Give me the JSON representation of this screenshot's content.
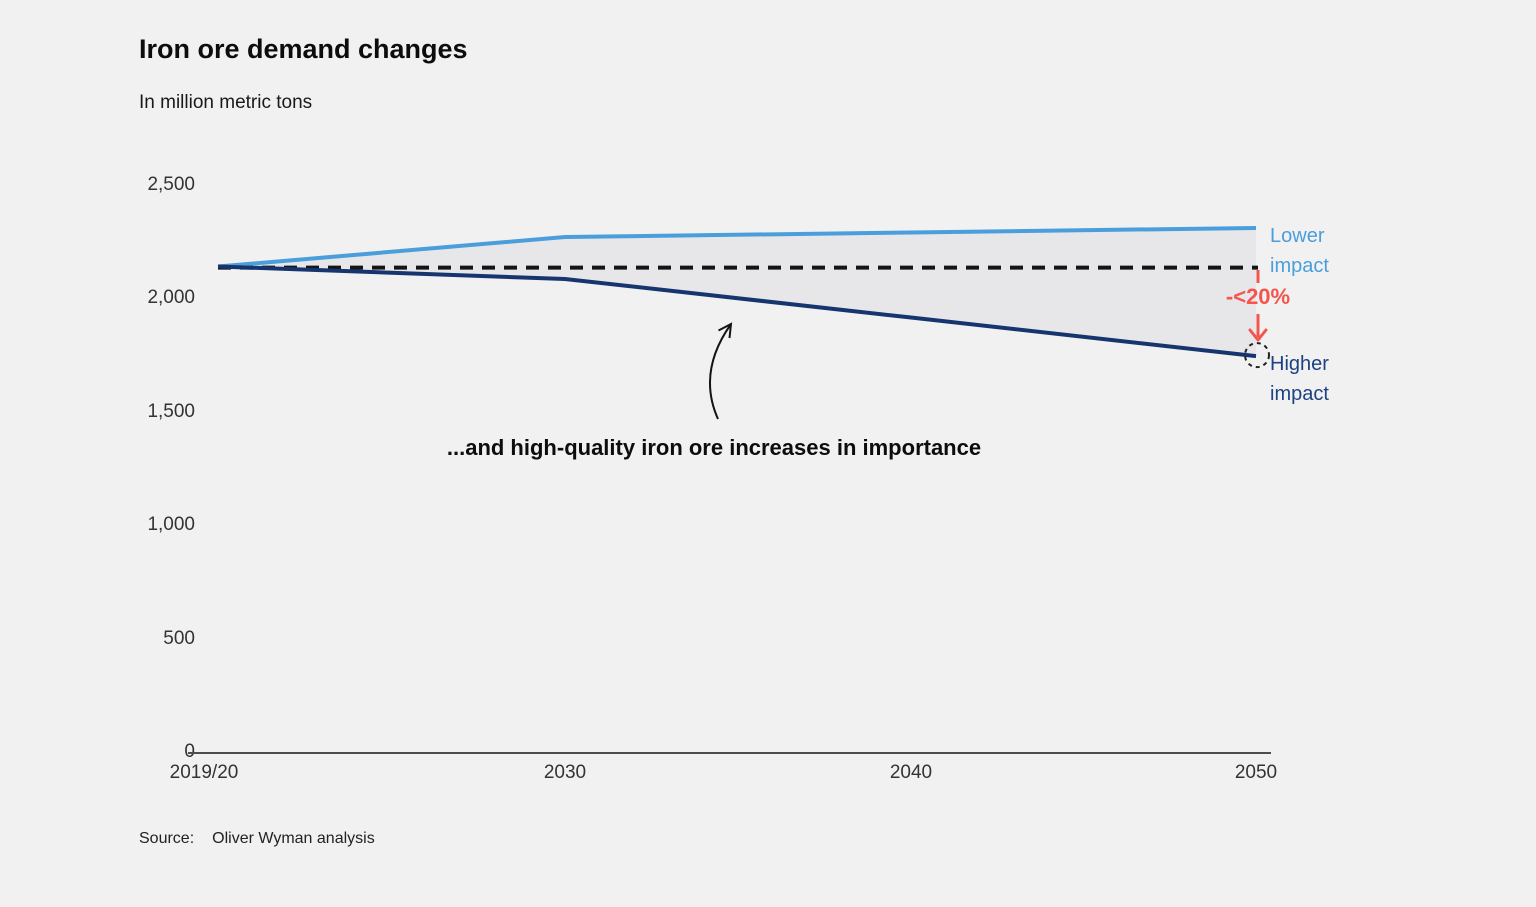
{
  "header": {
    "title": "Iron ore demand changes",
    "subtitle": "In million metric tons"
  },
  "chart_data": {
    "type": "line",
    "title": "Iron ore demand changes",
    "ylabel": "In million metric tons",
    "categories": [
      "2019/20",
      "2030",
      "2040",
      "2050"
    ],
    "ylim": [
      0,
      2500
    ],
    "yticks": [
      {
        "value": 0,
        "label": "0"
      },
      {
        "value": 500,
        "label": "500"
      },
      {
        "value": 1000,
        "label": "1,000"
      },
      {
        "value": 1500,
        "label": "1,500"
      },
      {
        "value": 2000,
        "label": "2,000"
      },
      {
        "value": 2500,
        "label": "2,500"
      }
    ],
    "series": [
      {
        "name": "Lower impact",
        "color": "#4a9edb",
        "values": [
          2145,
          2275,
          2295,
          2315
        ]
      },
      {
        "name": "Higher impact",
        "color": "#16356e",
        "values": [
          2145,
          2090,
          1920,
          1750
        ]
      }
    ],
    "baseline": {
      "value": 2140,
      "style": "dashed",
      "color": "#141414"
    },
    "area_fill": "#e7e7ea",
    "grid": false,
    "legend_position": "right-of-line-ends"
  },
  "labels": {
    "pct_change": "-<20%"
  },
  "annotation": {
    "text": "...and high-quality iron ore increases in importance"
  },
  "colors": {
    "lower_impact": "#4a9edb",
    "higher_impact": "#16356e",
    "accent_red": "#f4554d",
    "background": "#f1f1f2",
    "axis": "#4d4d4d"
  },
  "source": {
    "label": "Source:",
    "text": "Oliver Wyman analysis"
  }
}
